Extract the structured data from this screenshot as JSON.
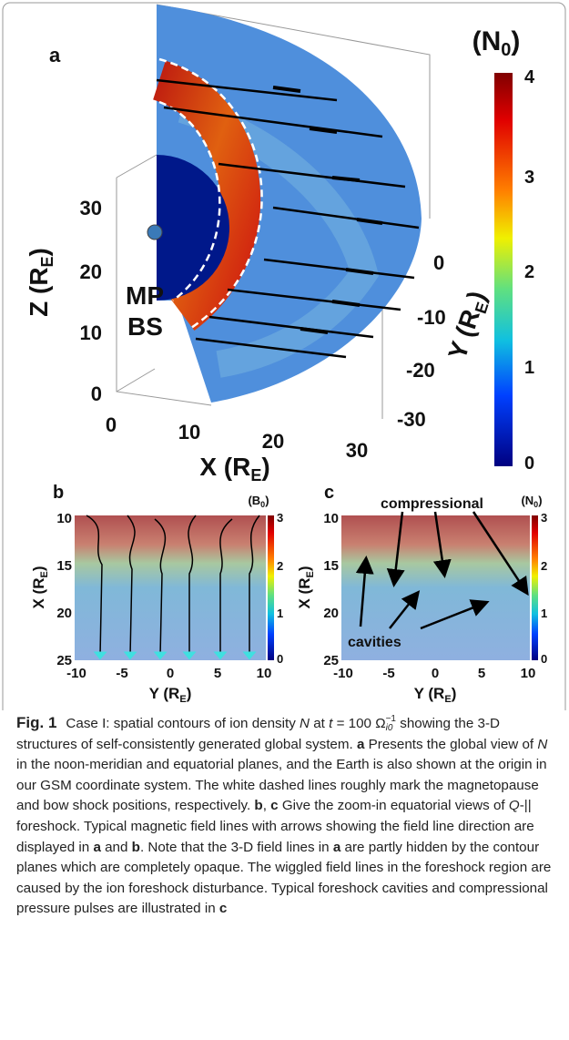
{
  "panel_a": {
    "label": "a",
    "colorbar_unit": [
      "(N",
      "0",
      ")"
    ],
    "colorbar_ticks": [
      "4",
      "3",
      "2",
      "1",
      "0"
    ],
    "z_axis": {
      "label": [
        "Z (R",
        "E",
        ")"
      ],
      "ticks": [
        "30",
        "20",
        "10",
        "0"
      ]
    },
    "x_axis": {
      "label": [
        "X (R",
        "E",
        ")"
      ],
      "ticks": [
        "0",
        "10",
        "20",
        "30"
      ]
    },
    "y_axis": {
      "label": [
        "Y (R",
        "E",
        ")"
      ],
      "ticks": [
        "0",
        "-10",
        "-20",
        "-30"
      ]
    },
    "annotations": [
      "MP",
      "BS"
    ]
  },
  "panel_b": {
    "label": "b",
    "colorbar_unit": [
      "(B",
      "0",
      ")"
    ],
    "colorbar_ticks": [
      "3",
      "2",
      "1",
      "0"
    ],
    "y_axis": {
      "label": [
        "X (R",
        "E",
        ")"
      ],
      "ticks": [
        "10",
        "15",
        "20",
        "25"
      ]
    },
    "x_axis": {
      "label": [
        "Y (R",
        "E",
        ")"
      ],
      "ticks": [
        "-10",
        "-5",
        "0",
        "5",
        "10"
      ]
    }
  },
  "panel_c": {
    "label": "c",
    "colorbar_unit": [
      "(N",
      "0",
      ")"
    ],
    "colorbar_ticks": [
      "3",
      "2",
      "1",
      "0"
    ],
    "y_axis": {
      "label": [
        "X (R",
        "E",
        ")"
      ],
      "ticks": [
        "10",
        "15",
        "20",
        "25"
      ]
    },
    "x_axis": {
      "label": [
        "Y (R",
        "E",
        ")"
      ],
      "ticks": [
        "-10",
        "-5",
        "0",
        "5",
        "10"
      ]
    },
    "annotations": [
      "compressional",
      "cavities"
    ]
  },
  "caption": {
    "segments": [
      "Fig. 1",
      "Case I: spatial contours of ion density ",
      "N",
      " at ",
      "t",
      " = 100 Ω",
      "−1",
      "i0",
      " showing the 3-D structures of self-consistently generated global system. ",
      "a",
      " Presents the global view of ",
      "N",
      " in the noon-meridian and equatorial planes, and the Earth is also shown at the origin in our GSM coordinate system. The white dashed lines roughly mark the magnetopause and bow shock positions, respectively. ",
      "b",
      ", ",
      "c",
      " Give the zoom-in equatorial views of ",
      "Q",
      "-|| foreshock. Typical magnetic field lines with arrows showing the field line direction are displayed in ",
      "a",
      " and ",
      "b",
      ". Note that the 3-D field lines in ",
      "a",
      " are partly hidden by the contour planes which are completely opaque. The wiggled field lines in the foreshock region are caused by the ion foreshock disturbance. Typical foreshock cavities and compressional pressure pulses are illustrated in ",
      "c"
    ]
  }
}
